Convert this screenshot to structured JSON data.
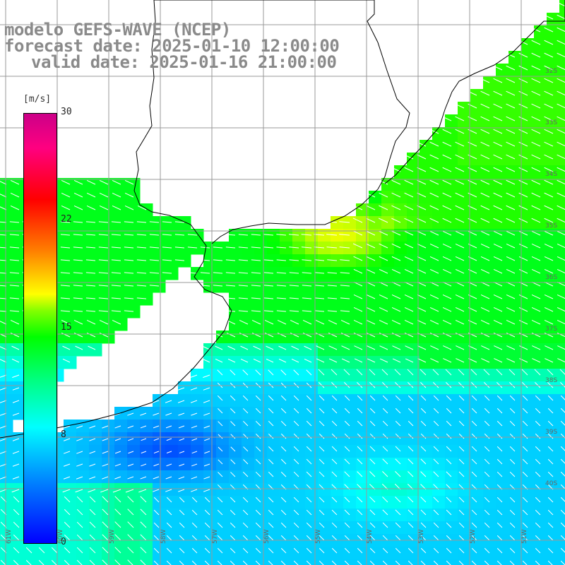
{
  "title": {
    "line1": "modelo GEFS-WAVE (NCEP)",
    "line2": "forecast date: 2025-01-10 12:00:00",
    "line3": "valid date: 2025-01-16 21:00:00"
  },
  "colorbar": {
    "unit": "[m/s]",
    "ticks": [
      "30",
      "22",
      "15",
      "8",
      "0"
    ],
    "min": 0,
    "max": 30
  },
  "axes": {
    "lat_labels": [
      "32S",
      "33S",
      "34S",
      "35S",
      "36S",
      "37S",
      "38S",
      "39S",
      "40S"
    ],
    "lon_labels": [
      "61W",
      "60W",
      "59W",
      "58W",
      "57W",
      "56W",
      "55W",
      "54W",
      "53W",
      "52W",
      "51W"
    ]
  },
  "field": {
    "variable": "wind speed",
    "arrows": "wind direction vectors"
  }
}
